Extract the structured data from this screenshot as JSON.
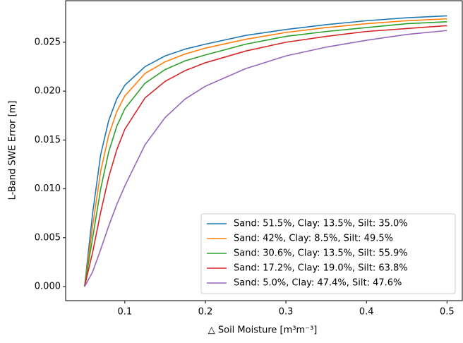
{
  "chart_data": {
    "type": "line",
    "xlabel": "△ Soil Moisture [m³m⁻³]",
    "ylabel": "L-Band SWE Error [m]",
    "x": [
      0.05,
      0.06,
      0.07,
      0.08,
      0.09,
      0.1,
      0.125,
      0.15,
      0.175,
      0.2,
      0.25,
      0.3,
      0.35,
      0.4,
      0.45,
      0.5
    ],
    "series": [
      {
        "name": "Sand: 51.5%, Clay: 13.5%, Silt: 35.0%",
        "color": "#1f77b4",
        "values": [
          0,
          0.0075,
          0.0135,
          0.017,
          0.0192,
          0.0206,
          0.0225,
          0.0236,
          0.0243,
          0.0248,
          0.0257,
          0.0263,
          0.0268,
          0.0272,
          0.0275,
          0.0277
        ]
      },
      {
        "name": "Sand: 42%, Clay: 8.5%, Silt: 49.5%",
        "color": "#ff7f0e",
        "values": [
          0,
          0.0062,
          0.0118,
          0.0155,
          0.0179,
          0.0195,
          0.0218,
          0.023,
          0.0238,
          0.0244,
          0.0253,
          0.026,
          0.0265,
          0.0269,
          0.0272,
          0.0274
        ]
      },
      {
        "name": "Sand: 30.6%, Clay: 13.5%, Silt: 55.9%",
        "color": "#2ca02c",
        "values": [
          0,
          0.005,
          0.01,
          0.0138,
          0.0164,
          0.0182,
          0.0208,
          0.0222,
          0.0231,
          0.0237,
          0.0248,
          0.0256,
          0.0261,
          0.0265,
          0.0269,
          0.0271
        ]
      },
      {
        "name": "Sand: 17.2%, Clay: 19.0%, Silt: 63.8%",
        "color": "#d62728",
        "values": [
          0,
          0.0035,
          0.0076,
          0.0112,
          0.014,
          0.0161,
          0.0193,
          0.021,
          0.0221,
          0.0229,
          0.0241,
          0.025,
          0.0256,
          0.0261,
          0.0264,
          0.0267
        ]
      },
      {
        "name": "Sand: 5.0%, Clay: 47.4%, Silt: 47.6%",
        "color": "#9467bd",
        "values": [
          0,
          0.0015,
          0.0038,
          0.0062,
          0.0084,
          0.0103,
          0.0145,
          0.0173,
          0.0192,
          0.0205,
          0.0223,
          0.0236,
          0.0245,
          0.0252,
          0.0258,
          0.0262
        ]
      }
    ],
    "xlim": [
      0.0265,
      0.519
    ],
    "ylim": [
      -0.00144,
      0.02925
    ],
    "xticks": [
      0.1,
      0.2,
      0.3,
      0.4,
      0.5
    ],
    "yticks": [
      {
        "value": 0,
        "label": "0.000"
      },
      {
        "value": 0.005,
        "label": "0.005"
      },
      {
        "value": 0.01,
        "label": "0.010"
      },
      {
        "value": 0.015,
        "label": "0.015"
      },
      {
        "value": 0.02,
        "label": "0.020"
      },
      {
        "value": 0.025,
        "label": "0.025"
      }
    ],
    "legend": "lower right"
  }
}
